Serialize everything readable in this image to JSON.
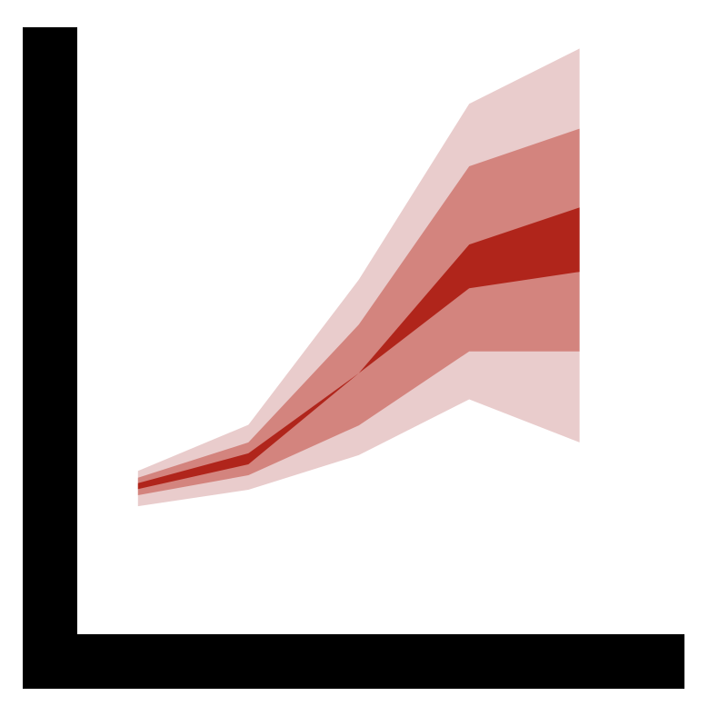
{
  "chart_data": {
    "type": "area",
    "x": [
      1,
      2,
      3,
      4,
      5
    ],
    "xlim": [
      0.45,
      5.95
    ],
    "ylim": [
      0,
      100
    ],
    "grid": false,
    "legend": "none",
    "series": [
      {
        "band": "outer",
        "color": "#e9cccc",
        "lower": [
          21.1,
          23.8,
          29.5,
          38.7,
          31.6
        ],
        "upper": [
          26.9,
          34.5,
          58.4,
          87.4,
          96.5
        ]
      },
      {
        "band": "middle",
        "color": "#d3847e",
        "lower": [
          22.9,
          26.2,
          34.4,
          46.6,
          46.6
        ],
        "upper": [
          25.8,
          31.6,
          51.0,
          77.1,
          83.3
        ]
      },
      {
        "band": "inner",
        "color": "#b0251b",
        "lower": [
          23.9,
          28.0,
          43.0,
          57.0,
          59.7
        ],
        "upper": [
          24.9,
          29.8,
          43.0,
          64.2,
          70.3
        ]
      }
    ],
    "axis_color": "#000000"
  }
}
